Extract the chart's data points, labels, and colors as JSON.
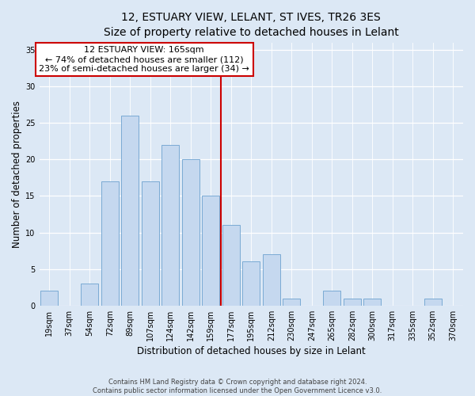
{
  "title": "12, ESTUARY VIEW, LELANT, ST IVES, TR26 3ES",
  "subtitle": "Size of property relative to detached houses in Lelant",
  "xlabel": "Distribution of detached houses by size in Lelant",
  "ylabel": "Number of detached properties",
  "bar_labels": [
    "19sqm",
    "37sqm",
    "54sqm",
    "72sqm",
    "89sqm",
    "107sqm",
    "124sqm",
    "142sqm",
    "159sqm",
    "177sqm",
    "195sqm",
    "212sqm",
    "230sqm",
    "247sqm",
    "265sqm",
    "282sqm",
    "300sqm",
    "317sqm",
    "335sqm",
    "352sqm",
    "370sqm"
  ],
  "bar_values": [
    2,
    0,
    3,
    17,
    26,
    17,
    22,
    20,
    15,
    11,
    6,
    7,
    1,
    0,
    2,
    1,
    1,
    0,
    0,
    1,
    0
  ],
  "bar_color": "#c5d8ef",
  "bar_edge_color": "#7aaad4",
  "vline_x": 8.5,
  "vline_color": "#cc0000",
  "annotation_text": "12 ESTUARY VIEW: 165sqm\n← 74% of detached houses are smaller (112)\n23% of semi-detached houses are larger (34) →",
  "annotation_box_facecolor": "#ffffff",
  "annotation_box_edgecolor": "#cc0000",
  "ylim": [
    0,
    36
  ],
  "yticks": [
    0,
    5,
    10,
    15,
    20,
    25,
    30,
    35
  ],
  "bg_color": "#dce8f5",
  "footer": "Contains HM Land Registry data © Crown copyright and database right 2024.\nContains public sector information licensed under the Open Government Licence v3.0.",
  "title_fontsize": 10,
  "subtitle_fontsize": 9,
  "xlabel_fontsize": 8.5,
  "ylabel_fontsize": 8.5,
  "tick_fontsize": 7,
  "annot_fontsize": 8
}
